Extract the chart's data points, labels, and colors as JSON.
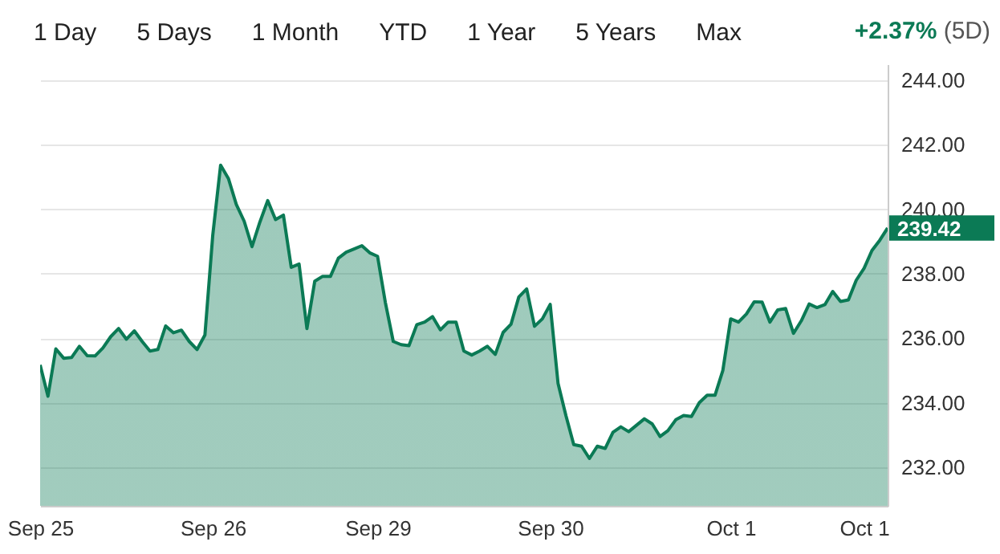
{
  "chart_data": {
    "type": "area",
    "subtitle": "+2.37% (5D)",
    "annotations": [
      "1 Day",
      "5 Days",
      "1 Month",
      "YTD",
      "1 Year",
      "5 Years",
      "Max",
      "239.42"
    ],
    "categories": [
      "Sep 25",
      null,
      null,
      null,
      null,
      null,
      null,
      null,
      null,
      null,
      null,
      null,
      null,
      null,
      null,
      null,
      null,
      null,
      null,
      null,
      null,
      null,
      "Sep 26",
      null,
      null,
      null,
      null,
      null,
      null,
      null,
      null,
      null,
      null,
      null,
      null,
      null,
      null,
      null,
      null,
      null,
      null,
      null,
      null,
      "Sep 29",
      null,
      null,
      null,
      null,
      null,
      null,
      null,
      null,
      null,
      null,
      null,
      null,
      null,
      null,
      null,
      null,
      null,
      null,
      null,
      null,
      null,
      "Sep 30",
      null,
      null,
      null,
      null,
      null,
      null,
      null,
      null,
      null,
      null,
      null,
      null,
      null,
      null,
      null,
      null,
      null,
      null,
      null,
      null,
      null,
      null,
      "Oct 1",
      null,
      null,
      null,
      null,
      null,
      null,
      null,
      null,
      null,
      null,
      null,
      null,
      null,
      null,
      null,
      null,
      "Oct 1",
      null,
      null,
      null
    ],
    "series": [
      {
        "color": "#0b7a55",
        "values": [
          235.17,
          234.2,
          235.67,
          235.38,
          235.4,
          235.75,
          235.46,
          235.45,
          235.7,
          236.05,
          236.3,
          235.97,
          236.23,
          235.9,
          235.6,
          235.65,
          236.38,
          236.17,
          236.25,
          235.9,
          235.65,
          236.1,
          239.2,
          241.37,
          240.95,
          240.15,
          239.63,
          238.84,
          239.6,
          240.27,
          239.68,
          239.82,
          238.2,
          238.3,
          236.3,
          237.77,
          237.92,
          237.92,
          238.48,
          238.67,
          238.77,
          238.87,
          238.65,
          238.54,
          237.1,
          235.9,
          235.8,
          235.77,
          236.42,
          236.5,
          236.67,
          236.26,
          236.5,
          236.5,
          235.6,
          235.48,
          235.6,
          235.75,
          235.5,
          236.18,
          236.43,
          237.28,
          237.53,
          236.37,
          236.6,
          237.05,
          234.6,
          233.6,
          232.7,
          232.65,
          232.27,
          232.65,
          232.58,
          233.08,
          233.25,
          233.1,
          233.3,
          233.5,
          233.34,
          232.95,
          233.13,
          233.47,
          233.6,
          233.57,
          234.0,
          234.23,
          234.23,
          235.0,
          236.6,
          236.5,
          236.75,
          237.13,
          237.12,
          236.5,
          236.88,
          236.92,
          236.15,
          236.54,
          237.06,
          236.95,
          237.04,
          237.45,
          237.14,
          237.19,
          237.8,
          238.17,
          238.72,
          239.04,
          239.42
        ]
      }
    ],
    "ylim": [
      230.8,
      244.5
    ],
    "yticks": [
      {
        "value": 232,
        "label": "232.00"
      },
      {
        "value": 234,
        "label": "234.00"
      },
      {
        "value": 236,
        "label": "236.00"
      },
      {
        "value": 238,
        "label": "238.00"
      },
      {
        "value": 240,
        "label": "240.00"
      },
      {
        "value": 242,
        "label": "242.00"
      },
      {
        "value": 244,
        "label": "244.00"
      }
    ],
    "grid": "y"
  }
}
